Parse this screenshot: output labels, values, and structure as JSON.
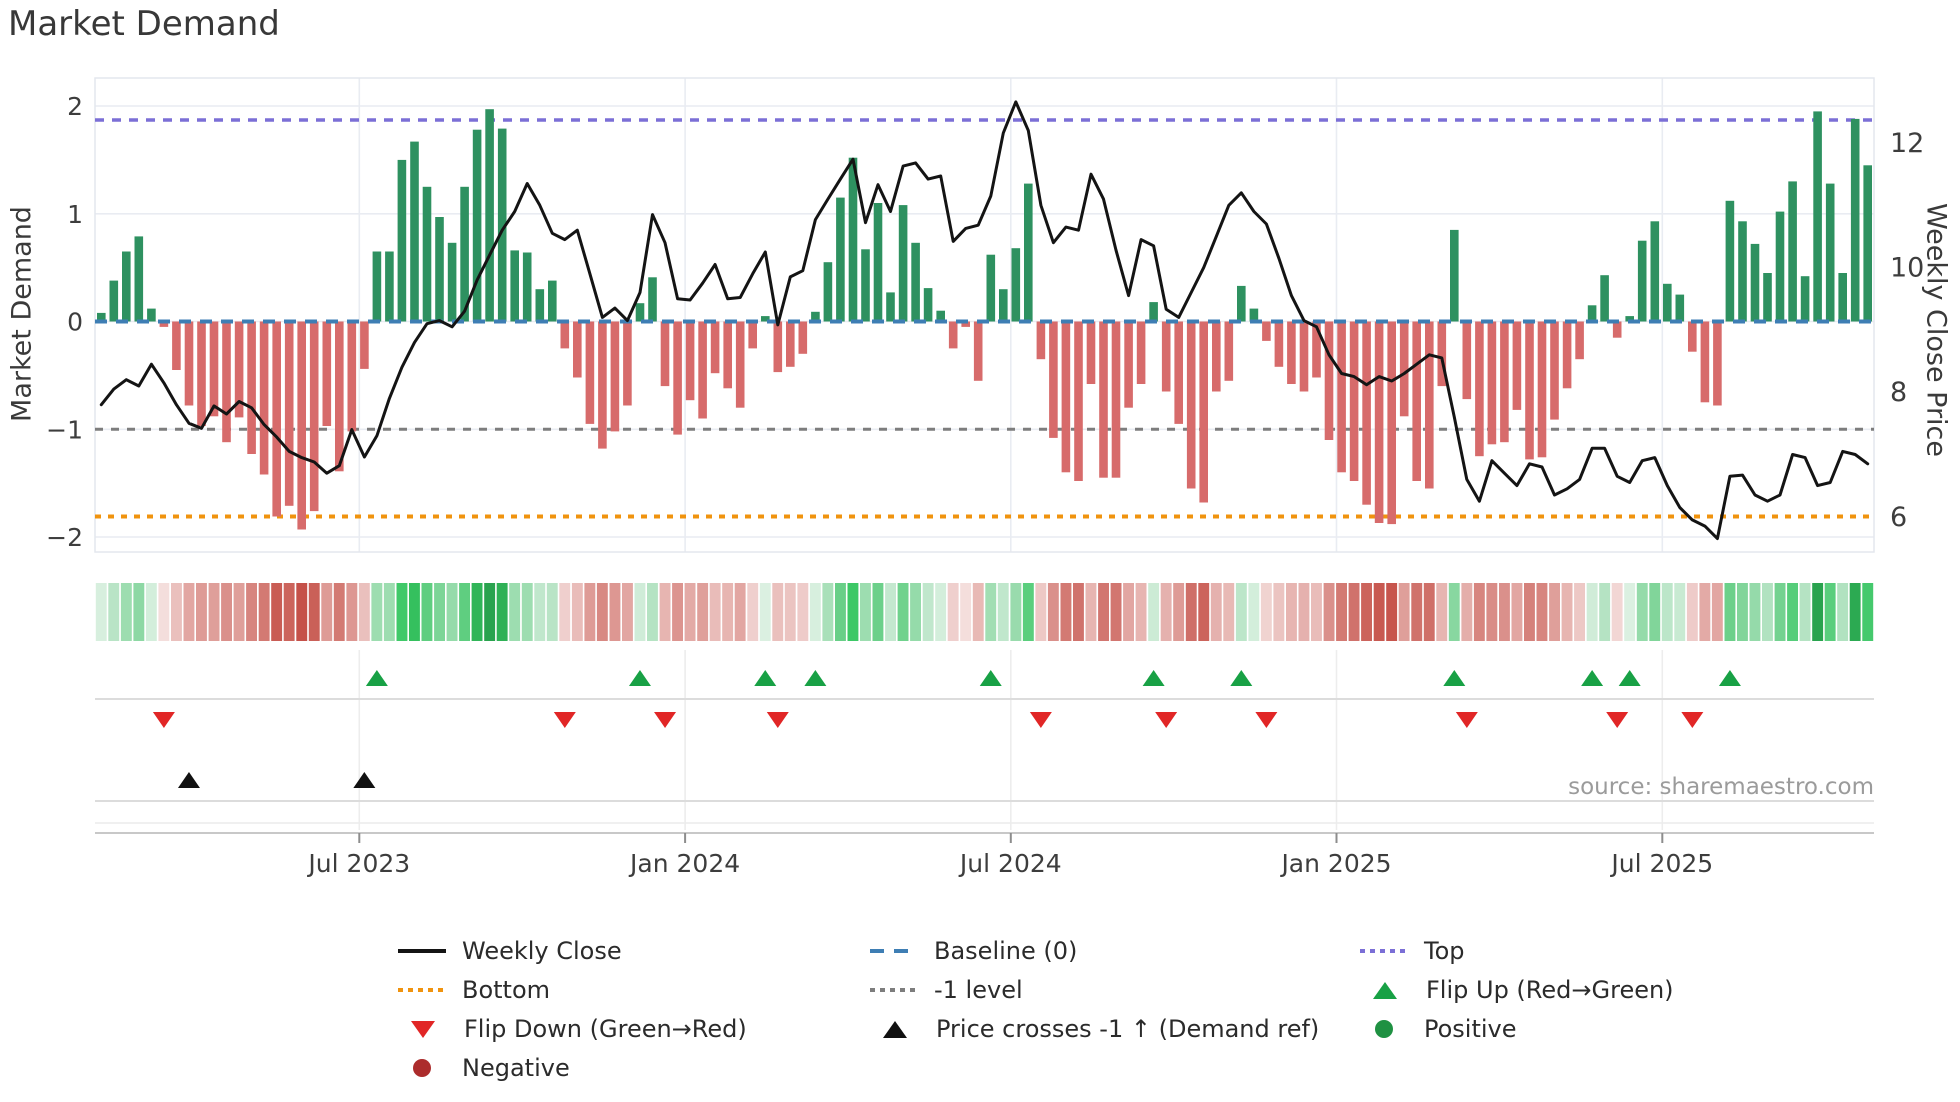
{
  "title": "Market Demand",
  "source": "source: sharemaestro.com",
  "axes": {
    "left_label": "Market Demand",
    "right_label": "Weekly Close Price",
    "left_ticks": [
      "2",
      "1",
      "0",
      "−1",
      "−2"
    ],
    "right_ticks": [
      "12",
      "10",
      "8",
      "6"
    ],
    "x_ticks": [
      "Jul 2023",
      "Jan 2024",
      "Jul 2024",
      "Jan 2025",
      "Jul 2025"
    ]
  },
  "colors": {
    "bar_positive": "#2e9160",
    "bar_negative": "#d76b6b",
    "price_line": "#141414",
    "baseline": "#3e7eb4",
    "top_line": "#7b6fd6",
    "bottom_line": "#f0930e",
    "minus_one_line": "#7d7d7d",
    "flip_up": "#18a145",
    "flip_down": "#e12626",
    "price_cross": "#111111",
    "positive_dot": "#1f9142",
    "negative_dot": "#ac2c2c",
    "grid": "#e9ecf2",
    "axis_line": "#c8c8c8",
    "tick_mark": "#8d8d8d"
  },
  "legend": [
    {
      "label": "Weekly Close",
      "symbol": "line",
      "style": "solid",
      "color_key": "price_line"
    },
    {
      "label": "Baseline (0)",
      "symbol": "line",
      "style": "dashed",
      "color_key": "baseline"
    },
    {
      "label": "Top",
      "symbol": "line",
      "style": "dotted",
      "color_key": "top_line"
    },
    {
      "label": "Bottom",
      "symbol": "line",
      "style": "dotted",
      "color_key": "bottom_line"
    },
    {
      "label": "-1 level",
      "symbol": "line",
      "style": "dotted",
      "color_key": "minus_one_line"
    },
    {
      "label": "Flip Up (Red→Green)",
      "symbol": "triangle-up",
      "color_key": "flip_up"
    },
    {
      "label": "Flip Down (Green→Red)",
      "symbol": "triangle-down",
      "color_key": "flip_down"
    },
    {
      "label": "Price crosses -1 ↑ (Demand ref)",
      "symbol": "triangle-up",
      "color_key": "price_cross"
    },
    {
      "label": "Positive",
      "symbol": "circle",
      "color_key": "positive_dot"
    },
    {
      "label": "Negative",
      "symbol": "circle",
      "color_key": "negative_dot"
    }
  ],
  "chart_data": {
    "type": "bar+line",
    "title": "Market Demand",
    "ylabel_left": "Market Demand",
    "ylabel_right": "Weekly Close Price",
    "ylim_left": [
      -2.17,
      2.17
    ],
    "ylim_right": [
      5.3,
      12.7
    ],
    "left_tick_values": [
      2,
      1,
      0,
      -1,
      -2
    ],
    "right_tick_values": [
      12,
      10,
      8,
      6
    ],
    "x_tick_labels": [
      "Jul 2023",
      "Jan 2024",
      "Jul 2024",
      "Jan 2025",
      "Jul 2025"
    ],
    "x_tick_positions": [
      20.6,
      46.6,
      72.6,
      98.6,
      124.6
    ],
    "baseline": 0,
    "top_level": 1.87,
    "bottom_level": -1.81,
    "minus_one_level": -1,
    "demand": [
      0.08,
      0.38,
      0.65,
      0.79,
      0.12,
      -0.05,
      -0.45,
      -0.78,
      -0.97,
      -0.88,
      -1.12,
      -0.89,
      -1.23,
      -1.42,
      -1.81,
      -1.71,
      -1.93,
      -1.76,
      -0.97,
      -1.39,
      -1.02,
      -0.44,
      0.65,
      0.65,
      1.5,
      1.67,
      1.25,
      0.97,
      0.73,
      1.25,
      1.78,
      1.97,
      1.79,
      0.66,
      0.64,
      0.3,
      0.38,
      -0.25,
      -0.52,
      -0.95,
      -1.18,
      -1.02,
      -0.78,
      0.17,
      0.41,
      -0.6,
      -1.05,
      -0.73,
      -0.9,
      -0.48,
      -0.62,
      -0.8,
      -0.25,
      0.05,
      -0.47,
      -0.42,
      -0.3,
      0.09,
      0.55,
      1.15,
      1.52,
      0.67,
      1.1,
      0.27,
      1.08,
      0.73,
      0.31,
      0.1,
      -0.25,
      -0.05,
      -0.55,
      0.62,
      0.3,
      0.68,
      1.28,
      -0.35,
      -1.08,
      -1.4,
      -1.48,
      -0.58,
      -1.45,
      -1.45,
      -0.8,
      -0.58,
      0.18,
      -0.65,
      -0.95,
      -1.55,
      -1.68,
      -0.65,
      -0.55,
      0.33,
      0.12,
      -0.18,
      -0.42,
      -0.58,
      -0.65,
      -0.52,
      -1.1,
      -1.4,
      -1.48,
      -1.7,
      -1.87,
      -1.88,
      -0.88,
      -1.48,
      -1.55,
      -0.6,
      0.85,
      -0.72,
      -1.25,
      -1.14,
      -1.12,
      -0.82,
      -1.28,
      -1.26,
      -0.91,
      -0.62,
      -0.35,
      0.15,
      0.43,
      -0.15,
      0.05,
      0.75,
      0.93,
      0.35,
      0.25,
      -0.28,
      -0.75,
      -0.78,
      1.12,
      0.93,
      0.72,
      0.45,
      1.02,
      1.3,
      0.42,
      1.95,
      1.28,
      0.45,
      1.88,
      1.45
    ],
    "price": [
      7.8,
      8.05,
      8.2,
      8.1,
      8.45,
      8.15,
      7.8,
      7.5,
      7.42,
      7.78,
      7.65,
      7.85,
      7.75,
      7.48,
      7.28,
      7.05,
      6.95,
      6.88,
      6.7,
      6.82,
      7.4,
      6.96,
      7.3,
      7.9,
      8.4,
      8.8,
      9.1,
      9.15,
      9.05,
      9.3,
      9.8,
      10.2,
      10.6,
      10.9,
      11.35,
      11.0,
      10.55,
      10.45,
      10.6,
      9.9,
      9.2,
      9.35,
      9.15,
      9.6,
      10.85,
      10.4,
      9.5,
      9.48,
      9.75,
      10.05,
      9.5,
      9.52,
      9.9,
      10.25,
      9.08,
      9.85,
      9.95,
      10.77,
      11.1,
      11.42,
      11.74,
      10.72,
      11.33,
      10.9,
      11.63,
      11.68,
      11.42,
      11.47,
      10.42,
      10.63,
      10.68,
      11.15,
      12.16,
      12.66,
      12.2,
      11.0,
      10.4,
      10.65,
      10.6,
      11.5,
      11.1,
      10.28,
      9.55,
      10.45,
      10.35,
      9.33,
      9.2,
      9.6,
      10.0,
      10.5,
      11.0,
      11.2,
      10.9,
      10.7,
      10.15,
      9.55,
      9.15,
      9.05,
      8.6,
      8.3,
      8.25,
      8.12,
      8.25,
      8.18,
      8.3,
      8.45,
      8.6,
      8.55,
      7.6,
      6.6,
      6.25,
      6.9,
      6.7,
      6.5,
      6.85,
      6.8,
      6.35,
      6.45,
      6.6,
      7.1,
      7.1,
      6.65,
      6.55,
      6.9,
      6.95,
      6.5,
      6.15,
      5.95,
      5.85,
      5.65,
      6.65,
      6.67,
      6.35,
      6.25,
      6.35,
      7.0,
      6.95,
      6.5,
      6.55,
      7.05,
      7.0,
      6.85
    ],
    "flip_up_weeks": [
      22,
      43,
      53,
      57,
      71,
      84,
      91,
      108,
      119,
      122,
      130
    ],
    "flip_down_weeks": [
      5,
      37,
      45,
      54,
      75,
      85,
      93,
      109,
      121,
      127
    ],
    "price_cross_weeks": [
      7,
      21
    ]
  }
}
